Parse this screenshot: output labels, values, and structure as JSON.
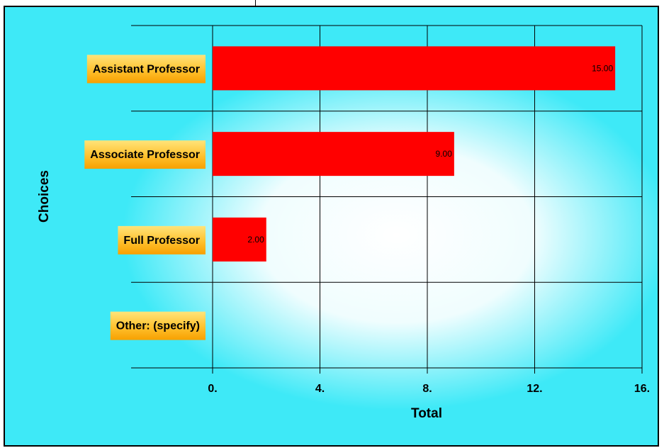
{
  "chart_data": {
    "type": "bar",
    "orientation": "horizontal",
    "categories": [
      "Assistant Professor",
      "Associate Professor",
      "Full Professor",
      "Other: (specify)"
    ],
    "values": [
      15.0,
      9.0,
      2.0,
      null
    ],
    "data_labels": [
      "15.00",
      "9.00",
      "2.00",
      ""
    ],
    "xlabel": "Total",
    "ylabel": "Choices",
    "xlim": [
      0,
      16
    ],
    "xticks": [
      0,
      4,
      8,
      12,
      16
    ],
    "xtick_labels": [
      "0.",
      "4.",
      "8.",
      "12.",
      "16."
    ],
    "grid": true,
    "bar_color": "#ff0000",
    "label_box_color": "#ffb000",
    "background_color": "#3ee9f7"
  }
}
